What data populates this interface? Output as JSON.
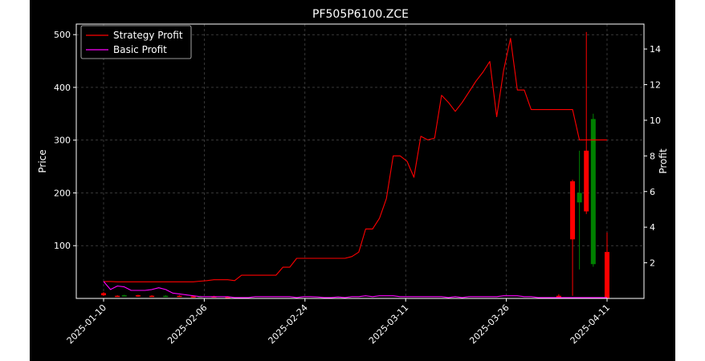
{
  "chart_data": {
    "type": "line",
    "title": "PF505P6100.ZCE",
    "ylabel_left": "Price",
    "ylabel_right": "Profit",
    "grid": true,
    "legend_position": "top-left",
    "colors": {
      "background": "#000000",
      "strategy": "#ff0000",
      "basic": "#ff00ff",
      "grid": "#808080",
      "candle_up": "#008000",
      "candle_down": "#ff0000",
      "text": "#ffffff"
    },
    "x_ticks": [
      "2025-01-10",
      "2025-02-06",
      "2025-02-24",
      "2025-03-11",
      "2025-03-26",
      "2025-04-11"
    ],
    "y_left_ticks": [
      "100",
      "200",
      "300",
      "400",
      "500"
    ],
    "y_right_ticks": [
      "2",
      "4",
      "6",
      "8",
      "10",
      "12",
      "14"
    ],
    "ylim_left": [
      0,
      520
    ],
    "ylim_right": [
      0,
      15.4
    ],
    "legend": [
      "Strategy Profit",
      "Basic Profit"
    ],
    "series": [
      {
        "name": "Strategy Profit",
        "axis": "right",
        "values": [
          0.95,
          0.95,
          0.93,
          0.93,
          0.93,
          0.93,
          0.93,
          0.93,
          0.93,
          0.93,
          0.93,
          0.93,
          0.93,
          0.93,
          0.97,
          1.0,
          1.05,
          1.05,
          1.05,
          1.0,
          1.3,
          1.3,
          1.3,
          1.3,
          1.3,
          1.3,
          1.75,
          1.75,
          2.25,
          2.25,
          2.25,
          2.25,
          2.25,
          2.25,
          2.25,
          2.25,
          2.35,
          2.6,
          3.9,
          3.9,
          4.5,
          5.6,
          8.0,
          8.0,
          7.7,
          6.8,
          9.1,
          8.9,
          9.0,
          11.4,
          11.0,
          10.5,
          11.0,
          11.6,
          12.2,
          12.7,
          13.3,
          10.2,
          12.8,
          14.6,
          11.7,
          11.7,
          10.6,
          10.6,
          10.6,
          10.6,
          10.6,
          10.6,
          10.6,
          8.9,
          8.9,
          8.9,
          8.9,
          8.9
        ]
      },
      {
        "name": "Basic Profit",
        "axis": "right",
        "values": [
          0.95,
          0.5,
          0.7,
          0.65,
          0.45,
          0.45,
          0.45,
          0.5,
          0.6,
          0.5,
          0.3,
          0.25,
          0.2,
          0.15,
          0.1,
          0.1,
          0.1,
          0.1,
          0.1,
          0.05,
          0.05,
          0.05,
          0.1,
          0.1,
          0.1,
          0.1,
          0.1,
          0.1,
          0.05,
          0.1,
          0.1,
          0.08,
          0.05,
          0.05,
          0.08,
          0.05,
          0.1,
          0.1,
          0.15,
          0.1,
          0.15,
          0.15,
          0.15,
          0.1,
          0.1,
          0.1,
          0.1,
          0.1,
          0.1,
          0.1,
          0.05,
          0.1,
          0.05,
          0.1,
          0.1,
          0.1,
          0.1,
          0.1,
          0.15,
          0.15,
          0.15,
          0.1,
          0.1,
          0.05,
          0.05,
          0.05,
          0.05,
          0.05,
          0.05,
          0.05,
          0.05,
          0.05,
          0.05,
          0.05
        ]
      }
    ],
    "candles": [
      {
        "i": 0,
        "open": 10,
        "close": 6,
        "high": 12,
        "low": 5
      },
      {
        "i": 2,
        "open": 5,
        "close": 4,
        "high": 6,
        "low": 3
      },
      {
        "i": 3,
        "open": 5,
        "close": 6,
        "high": 7,
        "low": 4
      },
      {
        "i": 5,
        "open": 6,
        "close": 4,
        "high": 7,
        "low": 3
      },
      {
        "i": 7,
        "open": 5,
        "close": 4,
        "high": 6,
        "low": 3
      },
      {
        "i": 9,
        "open": 4,
        "close": 5,
        "high": 6,
        "low": 3
      },
      {
        "i": 11,
        "open": 5,
        "close": 4,
        "high": 6,
        "low": 3
      },
      {
        "i": 13,
        "open": 4,
        "close": 3,
        "high": 5,
        "low": 2
      },
      {
        "i": 14,
        "open": 3,
        "close": 4,
        "high": 5,
        "low": 2
      },
      {
        "i": 16,
        "open": 4,
        "close": 3,
        "high": 5,
        "low": 2
      },
      {
        "i": 18,
        "open": 3,
        "close": 2,
        "high": 4,
        "low": 1
      },
      {
        "i": 66,
        "open": 5,
        "close": 1,
        "high": 8,
        "low": 0
      },
      {
        "i": 68,
        "open": 222,
        "close": 112,
        "high": 225,
        "low": 5
      },
      {
        "i": 69,
        "open": 182,
        "close": 200,
        "high": 280,
        "low": 55
      },
      {
        "i": 70,
        "open": 280,
        "close": 165,
        "high": 505,
        "low": 160
      },
      {
        "i": 71,
        "open": 65,
        "close": 340,
        "high": 350,
        "low": 60
      },
      {
        "i": 73,
        "open": 88,
        "close": 0,
        "high": 125,
        "low": 0
      }
    ]
  }
}
